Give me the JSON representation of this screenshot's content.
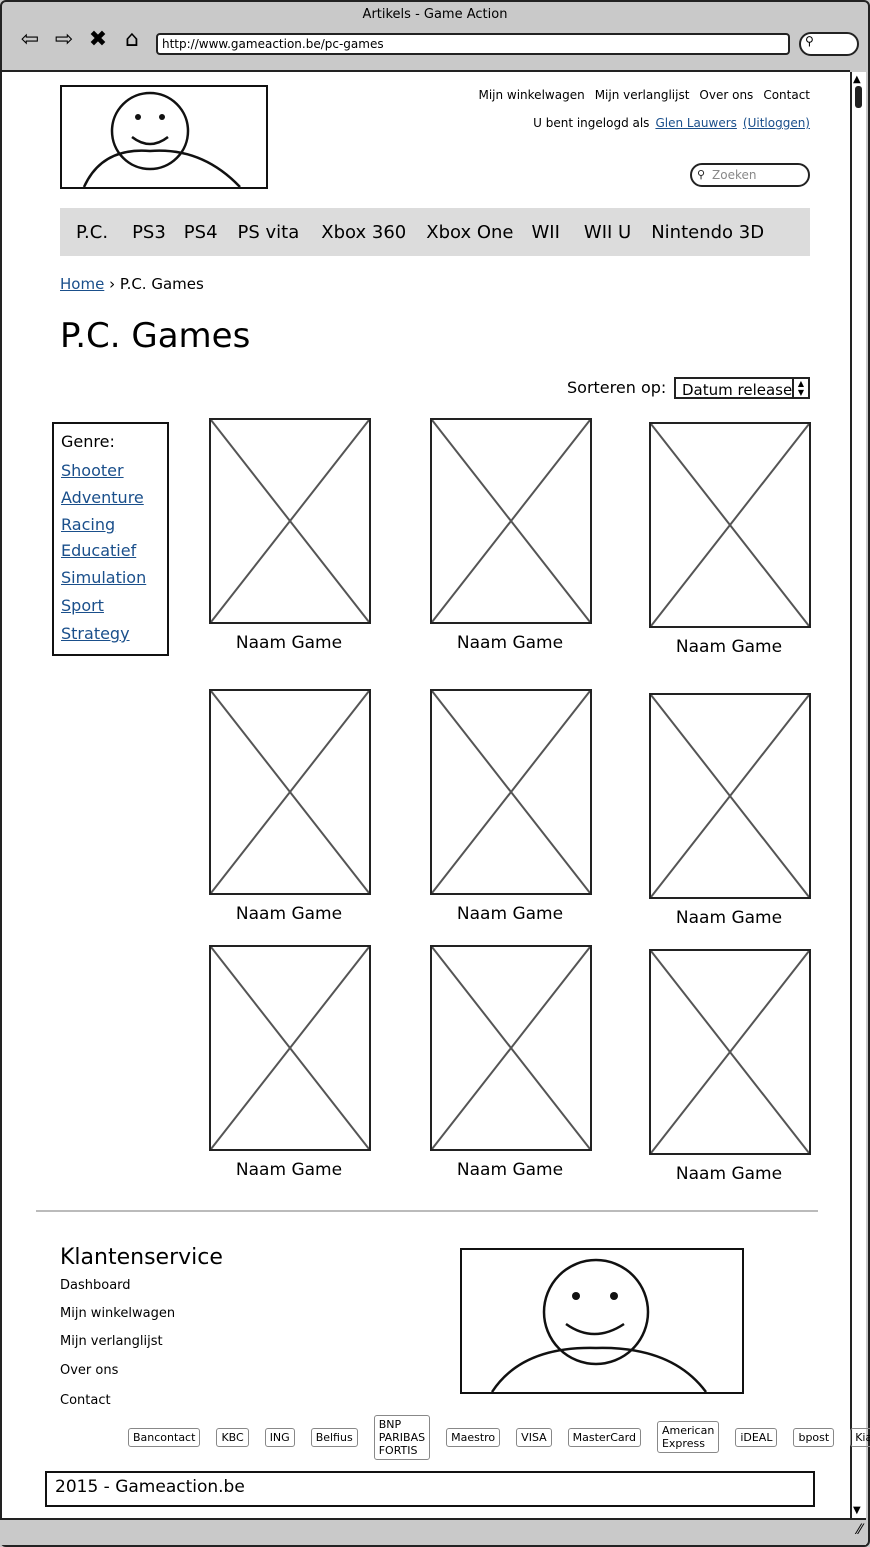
{
  "browser": {
    "window_title": "Artikels - Game Action",
    "url": "http://www.gameaction.be/pc-games",
    "nav_icons": [
      "back-icon",
      "forward-icon",
      "close-icon",
      "home-icon"
    ]
  },
  "header": {
    "top_links": [
      "Mijn winkelwagen",
      "Mijn verlanglijst",
      "Over ons",
      "Contact"
    ],
    "logged_in_prefix": "U bent ingelogd als",
    "user_name": "Glen Lauwers",
    "logout_label": "(Uitloggen)",
    "search_placeholder": "Zoeken"
  },
  "categories": [
    "P.C.",
    "PS3",
    "PS4",
    "PS vita",
    "Xbox 360",
    "Xbox One",
    "WII",
    "WII U",
    "Nintendo 3D"
  ],
  "breadcrumb": {
    "home": "Home",
    "separator": "›",
    "current": "P.C. Games"
  },
  "page_title": "P.C. Games",
  "sort": {
    "label": "Sorteren op:",
    "selected": "Datum release"
  },
  "genre": {
    "heading": "Genre:",
    "items": [
      "Shooter",
      "Adventure",
      "Racing",
      "Educatief",
      "Simulation",
      "Sport",
      "Strategy"
    ]
  },
  "games": [
    {
      "name": "Naam Game"
    },
    {
      "name": "Naam Game"
    },
    {
      "name": "Naam Game"
    },
    {
      "name": "Naam Game"
    },
    {
      "name": "Naam Game"
    },
    {
      "name": "Naam Game"
    },
    {
      "name": "Naam Game"
    },
    {
      "name": "Naam Game"
    },
    {
      "name": "Naam Game"
    }
  ],
  "footer": {
    "title": "Klantenservice",
    "links": [
      "Dashboard",
      "Mijn winkelwagen",
      "Mijn verlanglijst",
      "Over ons",
      "Contact"
    ],
    "payment_methods": [
      "Bancontact",
      "KBC",
      "ING",
      "Belfius",
      "BNP PARIBAS FORTIS",
      "Maestro",
      "VISA",
      "MasterCard",
      "American Express",
      "iDEAL",
      "bpost",
      "Kiala"
    ],
    "copyright": "2015 - Gameaction.be"
  }
}
